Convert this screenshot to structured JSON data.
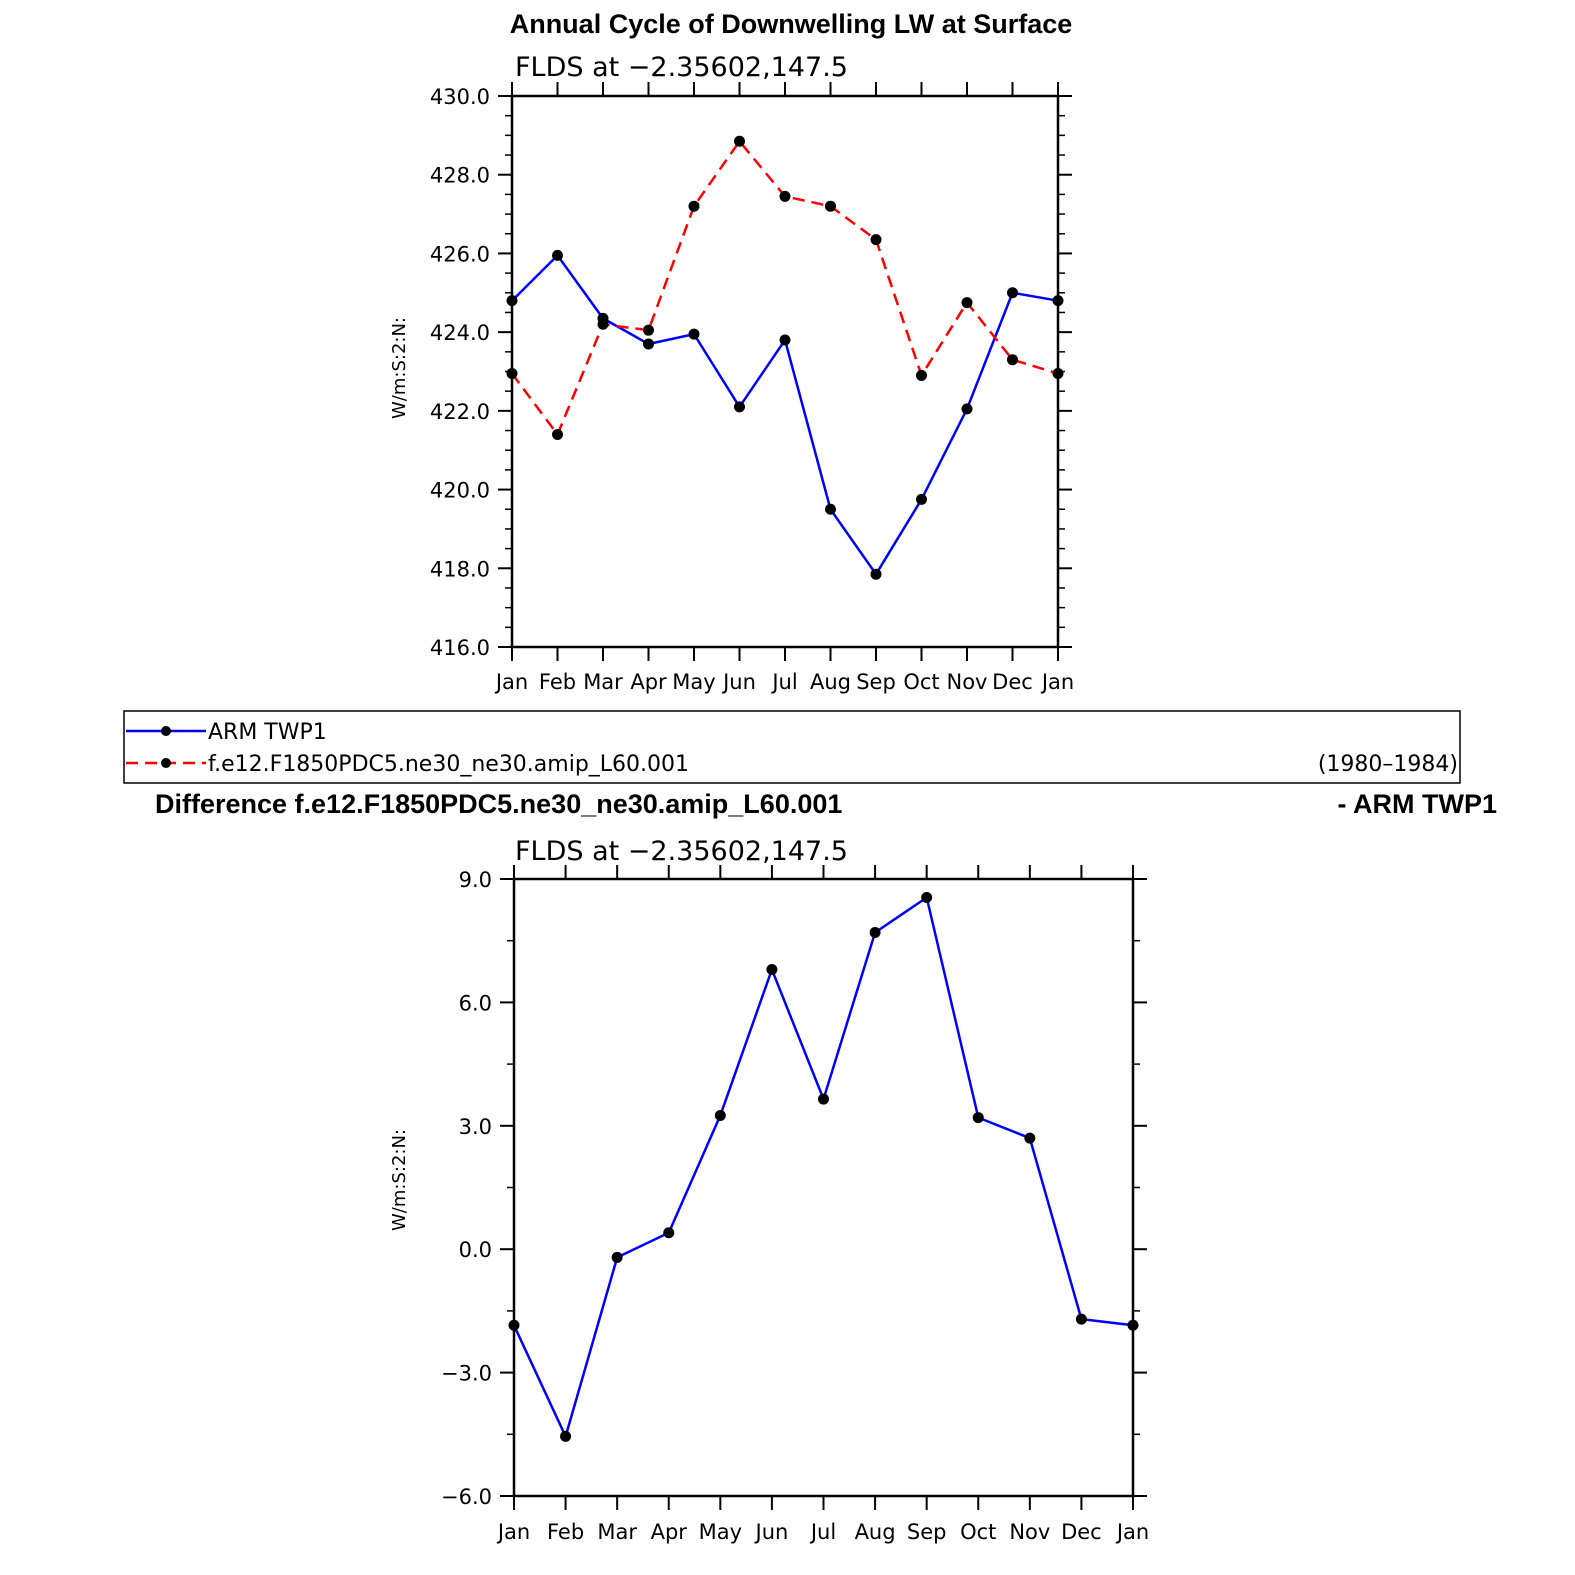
{
  "chart_data": [
    {
      "type": "line",
      "title": "Annual Cycle of Downwelling LW at Surface",
      "subtitle": "FLDS at −2.35602,147.5",
      "ylabel": "W/m:S:2:N:",
      "categories": [
        "Jan",
        "Feb",
        "Mar",
        "Apr",
        "May",
        "Jun",
        "Jul",
        "Aug",
        "Sep",
        "Oct",
        "Nov",
        "Dec",
        "Jan"
      ],
      "ylim": [
        416.0,
        430.0
      ],
      "yticks": [
        "416.0",
        "418.0",
        "420.0",
        "422.0",
        "424.0",
        "426.0",
        "428.0",
        "430.0"
      ],
      "series": [
        {
          "name": "ARM TWP1",
          "color": "#0000ff",
          "dash": "solid",
          "values": [
            424.8,
            425.95,
            424.35,
            423.7,
            423.95,
            422.1,
            423.8,
            419.5,
            417.85,
            419.75,
            422.05,
            425.0,
            424.8
          ]
        },
        {
          "name": "f.e12.F1850PDC5.ne30_ne30.amip_L60.001",
          "color": "#ff0000",
          "dash": "dashed",
          "values": [
            422.95,
            421.4,
            424.2,
            424.05,
            427.2,
            428.85,
            427.45,
            427.2,
            426.35,
            422.9,
            424.75,
            423.3,
            422.95
          ]
        }
      ]
    },
    {
      "type": "line",
      "title": "Difference f.e12.F1850PDC5.ne30_ne30.amip_L60.001",
      "title_right": "- ARM TWP1",
      "subtitle": "FLDS at −2.35602,147.5",
      "ylabel": "W/m:S:2:N:",
      "categories": [
        "Jan",
        "Feb",
        "Mar",
        "Apr",
        "May",
        "Jun",
        "Jul",
        "Aug",
        "Sep",
        "Oct",
        "Nov",
        "Dec",
        "Jan"
      ],
      "ylim": [
        -6.0,
        9.0
      ],
      "yticks": [
        "−6.0",
        "−3.0",
        "0.0",
        "3.0",
        "6.0",
        "9.0"
      ],
      "series": [
        {
          "color": "#0000ff",
          "dash": "solid",
          "values": [
            -1.85,
            -4.55,
            -0.2,
            0.4,
            3.25,
            6.8,
            3.65,
            7.7,
            8.55,
            3.2,
            2.7,
            -1.7,
            -1.85
          ]
        }
      ]
    }
  ],
  "legend": {
    "items": [
      "ARM TWP1",
      "f.e12.F1850PDC5.ne30_ne30.amip_L60.001"
    ],
    "period": "(1980–1984)"
  },
  "colors": {
    "obs": "#0000ff",
    "model": "#ff0000",
    "axis": "#000000"
  }
}
